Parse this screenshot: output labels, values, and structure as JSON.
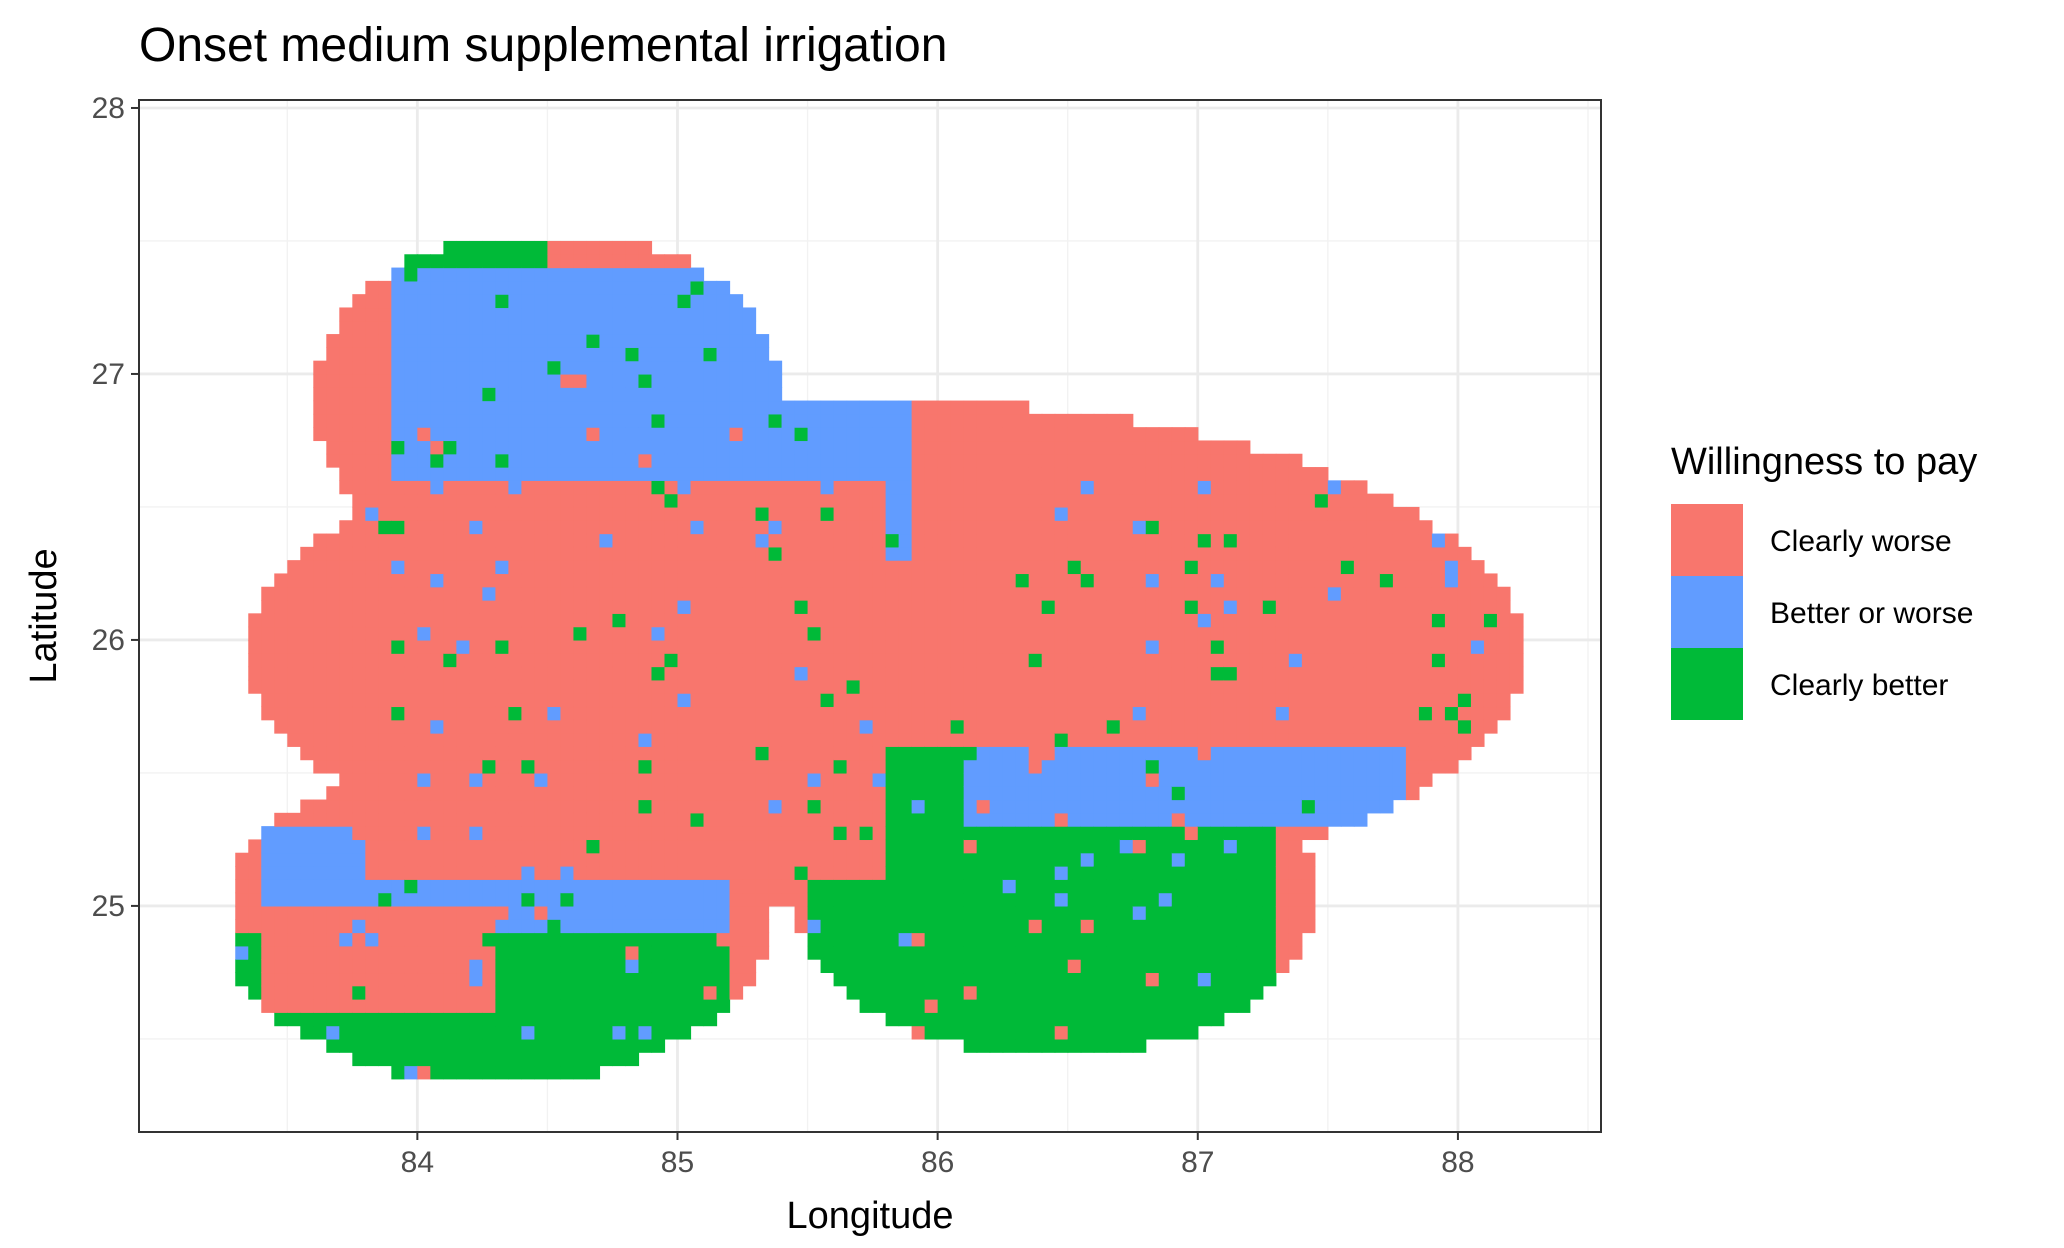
{
  "chart_data": {
    "type": "heatmap",
    "title": "Onset medium supplemental irrigation",
    "xlabel": "Longitude",
    "ylabel": "Latitude",
    "xlim": [
      82.93,
      88.55
    ],
    "ylim": [
      24.15,
      28.03
    ],
    "x_ticks": [
      84,
      85,
      86,
      87,
      88
    ],
    "y_ticks": [
      25,
      26,
      27,
      28
    ],
    "x_tick_labels": [
      "84",
      "85",
      "86",
      "87",
      "88"
    ],
    "y_tick_labels": [
      "25",
      "26",
      "27",
      "28"
    ],
    "grid": true,
    "legend_position": "right",
    "legend": {
      "title": "Willingness to pay",
      "categories": [
        "Clearly worse",
        "Better or worse",
        "Clearly better"
      ],
      "colors": [
        "#F8766D",
        "#619CFF",
        "#00BA38"
      ]
    },
    "cell_size_deg": 0.05,
    "regions": [
      {
        "category": "Clearly worse",
        "lon_range": [
          83.8,
          85.8
        ],
        "lat_range": [
          25.1,
          26.6
        ]
      },
      {
        "category": "Clearly worse",
        "lon_range": [
          86.0,
          88.3
        ],
        "lat_range": [
          25.6,
          26.6
        ]
      },
      {
        "category": "Clearly worse",
        "lon_range": [
          83.4,
          84.3
        ],
        "lat_range": [
          24.6,
          25.0
        ]
      },
      {
        "category": "Better or worse",
        "lon_range": [
          83.9,
          85.9
        ],
        "lat_range": [
          26.3,
          27.4
        ]
      },
      {
        "category": "Better or worse",
        "lon_range": [
          86.1,
          87.8
        ],
        "lat_range": [
          25.3,
          25.9
        ]
      },
      {
        "category": "Better or worse",
        "lon_range": [
          83.4,
          85.2
        ],
        "lat_range": [
          24.9,
          25.3
        ]
      },
      {
        "category": "Clearly better",
        "lon_range": [
          85.5,
          87.3
        ],
        "lat_range": [
          24.4,
          25.6
        ]
      },
      {
        "category": "Clearly better",
        "lon_range": [
          83.3,
          85.2
        ],
        "lat_range": [
          24.3,
          24.9
        ]
      },
      {
        "category": "Clearly better",
        "lon_range": [
          83.9,
          84.5
        ],
        "lat_range": [
          27.2,
          27.5
        ]
      }
    ]
  }
}
